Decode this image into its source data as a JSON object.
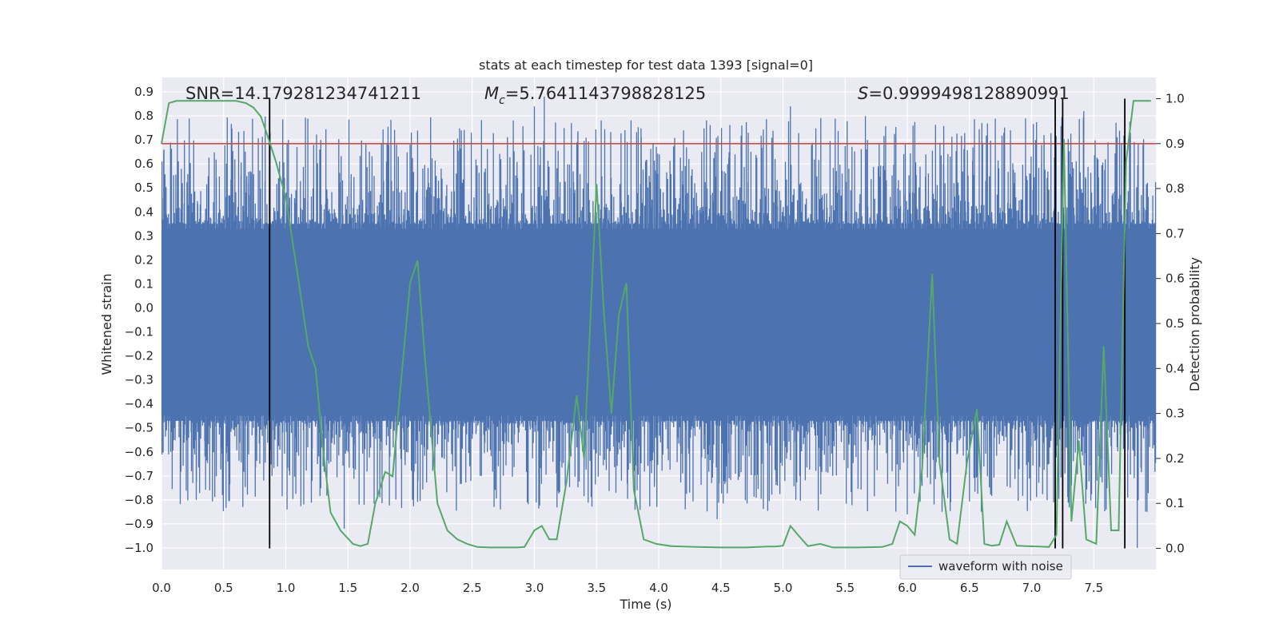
{
  "chart_data": {
    "type": "line",
    "title": "stats at each timestep for test data 1393 [signal=0]",
    "xlabel": "Time (s)",
    "ylabel": "Whitened strain",
    "y2label": "Detection probability",
    "xlim": [
      0.0,
      8.0
    ],
    "ylim": [
      -1.09,
      0.96
    ],
    "y2lim": [
      -0.047,
      1.047
    ],
    "xticks": [
      "0.0",
      "0.5",
      "1.0",
      "1.5",
      "2.0",
      "2.5",
      "3.0",
      "3.5",
      "4.0",
      "4.5",
      "5.0",
      "5.5",
      "6.0",
      "6.5",
      "7.0",
      "7.5"
    ],
    "yticks": [
      "0.9",
      "0.8",
      "0.7",
      "0.6",
      "0.5",
      "0.4",
      "0.3",
      "0.2",
      "0.1",
      "0.0",
      "-0.1",
      "-0.2",
      "-0.3",
      "-0.4",
      "-0.5",
      "-0.6",
      "-0.7",
      "-0.8",
      "-0.9",
      "-1.0"
    ],
    "y2ticks": [
      "1.0",
      "0.9",
      "0.8",
      "0.7",
      "0.6",
      "0.5",
      "0.4",
      "0.3",
      "0.2",
      "0.1",
      "0.0"
    ],
    "threshold": 0.9,
    "detection_times": [
      0.87,
      7.19,
      7.25,
      7.75
    ],
    "stats": {
      "snr_label": "SNR=14.179281234741211",
      "mc_symbol": "M",
      "mc_sub": "c",
      "mc_value": "=5.7641143798828125",
      "s_symbol": "S",
      "s_value": "=0.9999498128890991"
    },
    "legend": {
      "label": "waveform with noise"
    },
    "colors": {
      "waveform": "#4c72b0",
      "probability": "#55a868",
      "threshold": "#c44e52",
      "marker": "#000000",
      "background": "#eaeaf2",
      "grid": "#ffffff"
    },
    "waveform": {
      "name": "waveform with noise",
      "note": "dense noise, core band approx -0.45..0.33 with spikes to +0.88 / -1.0",
      "core_low": -0.45,
      "core_high": 0.33
    },
    "waveform_peaks": [
      {
        "t": 0.02,
        "v": 0.66
      },
      {
        "t": 0.16,
        "v": 0.58
      },
      {
        "t": 0.28,
        "v": -0.8
      },
      {
        "t": 0.49,
        "v": -0.78
      },
      {
        "t": 0.7,
        "v": 0.52
      },
      {
        "t": 0.95,
        "v": 0.61
      },
      {
        "t": 1.09,
        "v": 0.67
      },
      {
        "t": 1.3,
        "v": -0.66
      },
      {
        "t": 1.47,
        "v": -0.92
      },
      {
        "t": 1.63,
        "v": -0.82
      },
      {
        "t": 1.81,
        "v": 0.61
      },
      {
        "t": 2.0,
        "v": 0.68
      },
      {
        "t": 2.26,
        "v": -0.62
      },
      {
        "t": 2.48,
        "v": -0.66
      },
      {
        "t": 2.73,
        "v": 0.62
      },
      {
        "t": 3.0,
        "v": 0.84
      },
      {
        "t": 3.08,
        "v": 0.88
      },
      {
        "t": 3.35,
        "v": 0.73
      },
      {
        "t": 3.7,
        "v": -0.72
      },
      {
        "t": 3.86,
        "v": 0.71
      },
      {
        "t": 4.2,
        "v": 0.74
      },
      {
        "t": 4.47,
        "v": -0.88
      },
      {
        "t": 4.72,
        "v": 0.73
      },
      {
        "t": 5.06,
        "v": 0.84
      },
      {
        "t": 5.4,
        "v": -0.7
      },
      {
        "t": 5.68,
        "v": 0.7
      },
      {
        "t": 6.0,
        "v": -0.86
      },
      {
        "t": 6.28,
        "v": -0.85
      },
      {
        "t": 6.6,
        "v": 0.77
      },
      {
        "t": 6.83,
        "v": 0.74
      },
      {
        "t": 7.1,
        "v": 0.72
      },
      {
        "t": 7.42,
        "v": 0.82
      },
      {
        "t": 7.6,
        "v": -0.84
      },
      {
        "t": 7.85,
        "v": -1.0
      }
    ],
    "probability": {
      "name": "Detection probability",
      "x": [
        0.0,
        0.06,
        0.12,
        0.2,
        0.3,
        0.4,
        0.5,
        0.6,
        0.68,
        0.74,
        0.8,
        0.85,
        0.92,
        1.0,
        1.1,
        1.18,
        1.24,
        1.3,
        1.36,
        1.44,
        1.54,
        1.6,
        1.66,
        1.72,
        1.8,
        1.86,
        1.92,
        2.0,
        2.06,
        2.12,
        2.22,
        2.3,
        2.38,
        2.46,
        2.54,
        2.64,
        2.76,
        2.86,
        2.92,
        3.0,
        3.06,
        3.12,
        3.18,
        3.26,
        3.34,
        3.4,
        3.5,
        3.56,
        3.62,
        3.68,
        3.74,
        3.8,
        3.88,
        3.98,
        4.1,
        4.3,
        4.5,
        4.7,
        4.8,
        4.88,
        4.94,
        5.0,
        5.06,
        5.12,
        5.2,
        5.3,
        5.4,
        5.6,
        5.8,
        5.88,
        5.94,
        6.0,
        6.06,
        6.12,
        6.2,
        6.26,
        6.34,
        6.4,
        6.48,
        6.56,
        6.62,
        6.68,
        6.74,
        6.8,
        6.88,
        6.96,
        7.06,
        7.14,
        7.2,
        7.26,
        7.32,
        7.38,
        7.44,
        7.52,
        7.58,
        7.64,
        7.7,
        7.76,
        7.82,
        7.88,
        7.96
      ],
      "y": [
        0.9,
        0.99,
        0.995,
        0.995,
        0.995,
        0.995,
        0.995,
        0.995,
        0.99,
        0.98,
        0.96,
        0.92,
        0.86,
        0.78,
        0.6,
        0.45,
        0.4,
        0.22,
        0.08,
        0.04,
        0.01,
        0.005,
        0.01,
        0.1,
        0.17,
        0.16,
        0.35,
        0.59,
        0.64,
        0.42,
        0.1,
        0.04,
        0.02,
        0.01,
        0.003,
        0.002,
        0.002,
        0.002,
        0.003,
        0.04,
        0.05,
        0.02,
        0.02,
        0.15,
        0.34,
        0.2,
        0.81,
        0.52,
        0.3,
        0.52,
        0.59,
        0.13,
        0.02,
        0.01,
        0.005,
        0.003,
        0.002,
        0.002,
        0.003,
        0.004,
        0.004,
        0.006,
        0.05,
        0.03,
        0.005,
        0.01,
        0.002,
        0.002,
        0.003,
        0.01,
        0.06,
        0.05,
        0.03,
        0.18,
        0.61,
        0.19,
        0.02,
        0.01,
        0.19,
        0.31,
        0.01,
        0.006,
        0.008,
        0.06,
        0.006,
        0.005,
        0.004,
        0.003,
        0.03,
        0.91,
        0.06,
        0.24,
        0.02,
        0.01,
        0.45,
        0.04,
        0.04,
        0.86,
        0.995,
        0.995,
        0.995
      ]
    }
  }
}
